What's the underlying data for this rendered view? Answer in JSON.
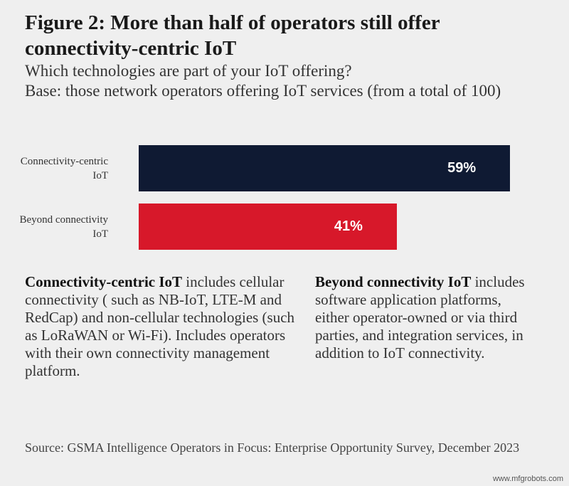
{
  "chart_data": {
    "type": "bar",
    "title": "Figure 2: More than half of operators still offer connectivity-centric IoT",
    "subtitle": "Which technologies are part of your IoT offering?",
    "base_note": "Base: those network operators offering IoT services (from a total of 100)",
    "categories": [
      "Connectivity-centric IoT",
      "Beyond connectivity IoT"
    ],
    "values": [
      59,
      41
    ],
    "value_labels": [
      "59%",
      "41%"
    ],
    "colors": [
      "#0f1a33",
      "#d7182a"
    ],
    "notes": [
      {
        "term": "Connectivity-centric IoT",
        "text": "includes cellular connectivity ( such as NB-IoT, LTE-M and RedCap) and non-cellular technologies (such as LoRaWAN or Wi-Fi). Includes operators with their own connectivity management platform."
      },
      {
        "term": "Beyond connectivity IoT",
        "text": "includes software application platforms, either operator-owned or via third parties, and integration services, in addition to IoT connectivity."
      }
    ],
    "source": "Source: GSMA Intelligence Operators in Focus: Enterprise Opportunity Survey, December 2023",
    "watermark": "www.mfgrobots.com"
  }
}
